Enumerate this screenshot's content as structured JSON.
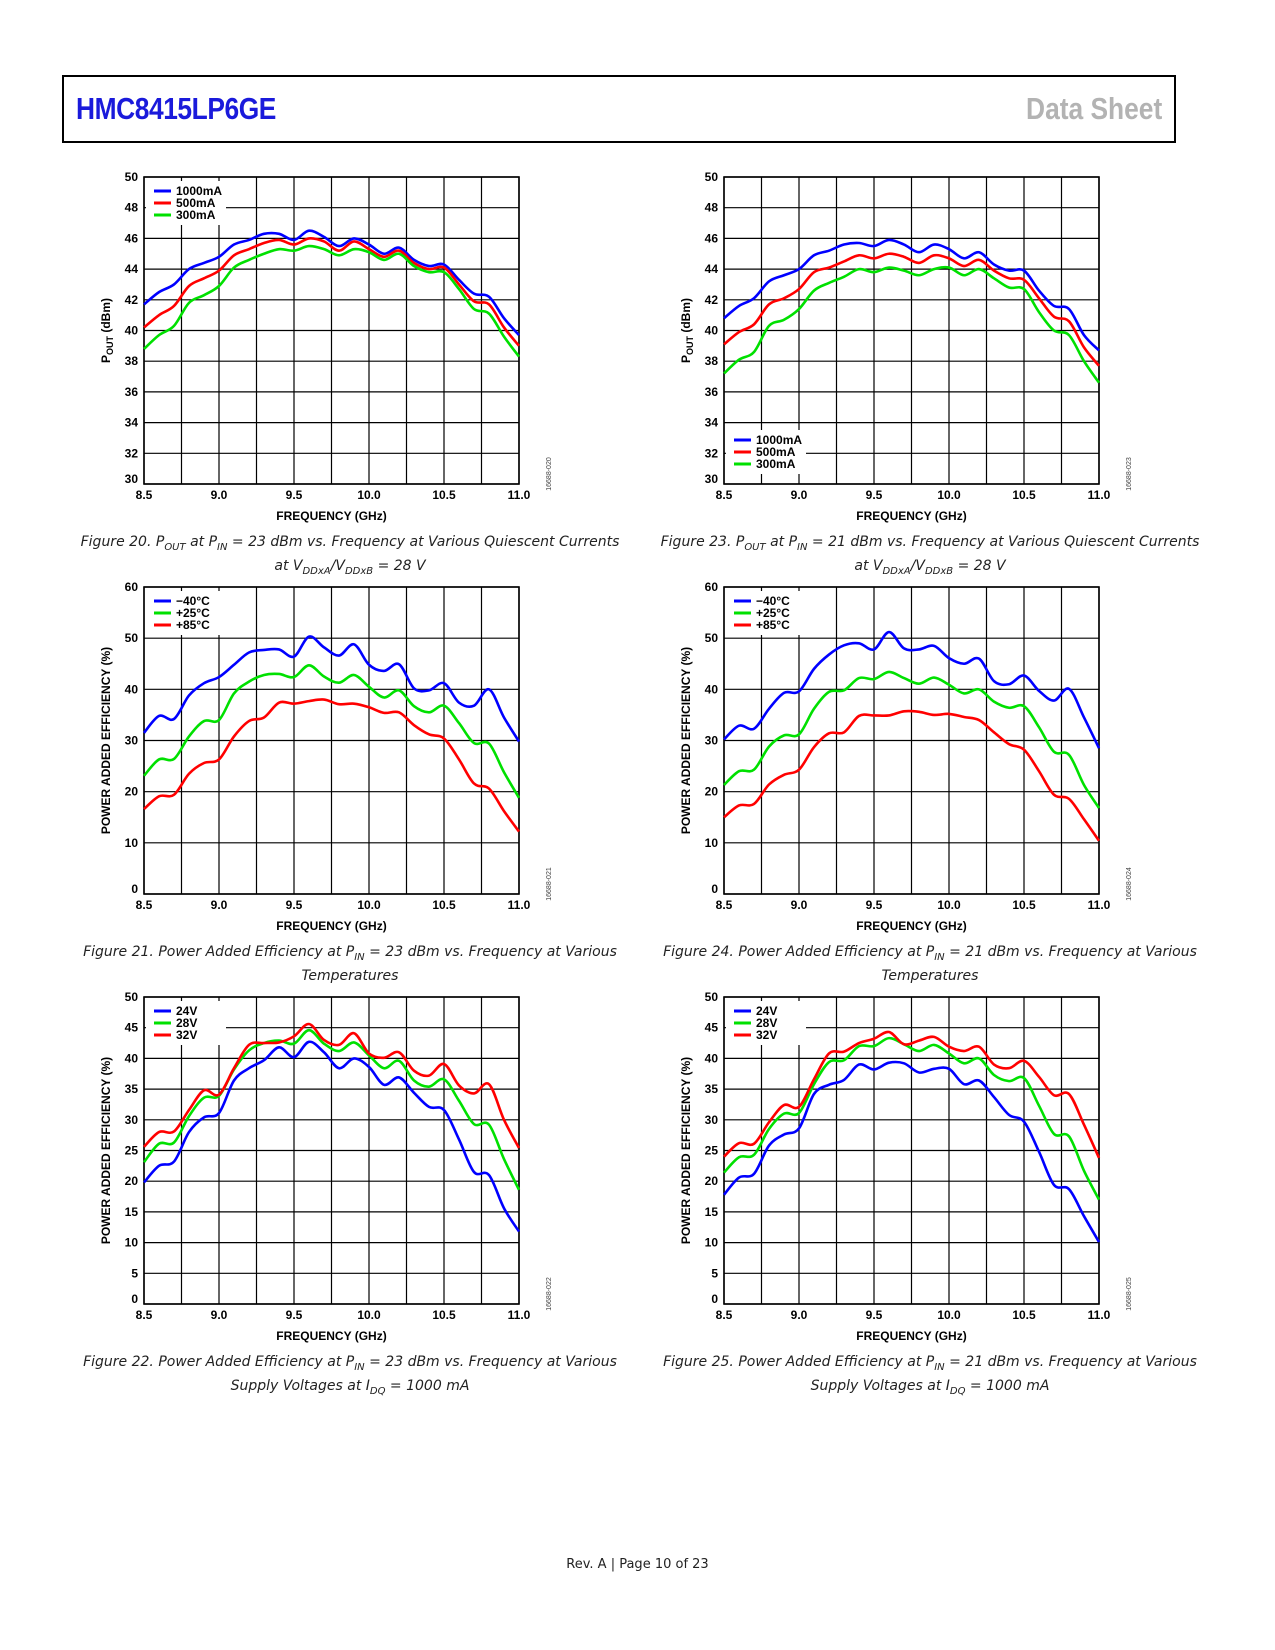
{
  "header": {
    "title": "HMC8415LP6GE",
    "doc_type": "Data Sheet"
  },
  "footer": {
    "text": "Rev. A | Page 10 of 23"
  },
  "figures": [
    {
      "id": "fig20",
      "caption_line1": "Figure 20. P_OUT at P_IN = 23 dBm vs. Frequency at Various Quiescent Currents",
      "caption_line2": "at V_DDxA/V_DDxB = 28 V",
      "side_id": "16688-020"
    },
    {
      "id": "fig23",
      "caption_line1": "Figure 23. P_OUT at P_IN = 21 dBm vs. Frequency at Various Quiescent Currents",
      "caption_line2": "at V_DDxA/V_DDxB = 28 V",
      "side_id": "16688-023"
    },
    {
      "id": "fig21",
      "caption_line1": "Figure 21. Power Added Efficiency at P_IN = 23 dBm vs. Frequency at Various",
      "caption_line2": "Temperatures",
      "side_id": "16688-021"
    },
    {
      "id": "fig24",
      "caption_line1": "Figure 24. Power Added Efficiency at P_IN = 21 dBm vs. Frequency at Various",
      "caption_line2": "Temperatures",
      "side_id": "16688-024"
    },
    {
      "id": "fig22",
      "caption_line1": "Figure 22. Power Added Efficiency at P_IN = 23 dBm vs. Frequency at Various",
      "caption_line2": "Supply Voltages at I_DQ = 1000 mA",
      "side_id": "16688-022"
    },
    {
      "id": "fig25",
      "caption_line1": "Figure 25. Power Added Efficiency at P_IN = 21 dBm vs. Frequency at Various",
      "caption_line2": "Supply Voltages at I_DQ = 1000 mA",
      "side_id": "16688-025"
    }
  ],
  "chart_data": [
    {
      "id": "fig20",
      "type": "line",
      "title": "P_OUT at P_IN = 23 dBm vs. Frequency at Various Quiescent Currents",
      "xlabel": "FREQUENCY (GHz)",
      "ylabel": "P_OUT (dBm)",
      "xlim": [
        8.5,
        11.0
      ],
      "ylim": [
        30,
        50
      ],
      "xticks": [
        "8.5",
        "9.0",
        "9.5",
        "10.0",
        "10.5",
        "11.0"
      ],
      "yticks": [
        "30",
        "32",
        "34",
        "36",
        "38",
        "40",
        "42",
        "44",
        "46",
        "48",
        "50"
      ],
      "grid": true,
      "legend_position": "top-left",
      "x": [
        8.5,
        8.6,
        8.7,
        8.8,
        8.9,
        9.0,
        9.1,
        9.2,
        9.3,
        9.4,
        9.5,
        9.6,
        9.7,
        9.8,
        9.9,
        10.0,
        10.1,
        10.2,
        10.3,
        10.4,
        10.5,
        10.6,
        10.7,
        10.8,
        10.9,
        11.0
      ],
      "series": [
        {
          "name": "1000mA",
          "color": "#0000ff",
          "values": [
            41.7,
            42.5,
            43.0,
            44.0,
            44.4,
            44.8,
            45.6,
            45.9,
            46.3,
            46.3,
            45.9,
            46.5,
            46.1,
            45.5,
            46.0,
            45.6,
            45.0,
            45.4,
            44.6,
            44.2,
            44.3,
            43.3,
            42.4,
            42.2,
            40.8,
            39.7
          ]
        },
        {
          "name": "500mA",
          "color": "#ff0000",
          "values": [
            40.2,
            41.0,
            41.6,
            42.9,
            43.4,
            43.9,
            44.9,
            45.3,
            45.7,
            45.9,
            45.6,
            46.0,
            45.8,
            45.2,
            45.8,
            45.3,
            44.8,
            45.2,
            44.4,
            44.0,
            44.1,
            43.0,
            41.9,
            41.7,
            40.2,
            39.0
          ]
        },
        {
          "name": "300mA",
          "color": "#00e000",
          "values": [
            38.8,
            39.7,
            40.3,
            41.8,
            42.3,
            42.9,
            44.1,
            44.6,
            45.0,
            45.3,
            45.2,
            45.5,
            45.3,
            44.9,
            45.3,
            45.1,
            44.6,
            45.0,
            44.2,
            43.8,
            43.8,
            42.7,
            41.4,
            41.1,
            39.6,
            38.3
          ]
        }
      ]
    },
    {
      "id": "fig23",
      "type": "line",
      "title": "P_OUT at P_IN = 21 dBm vs. Frequency at Various Quiescent Currents",
      "xlabel": "FREQUENCY (GHz)",
      "ylabel": "P_OUT (dBm)",
      "xlim": [
        8.5,
        11.0
      ],
      "ylim": [
        30,
        50
      ],
      "xticks": [
        "8.5",
        "9.0",
        "9.5",
        "10.0",
        "10.5",
        "11.0"
      ],
      "yticks": [
        "30",
        "32",
        "34",
        "36",
        "38",
        "40",
        "42",
        "44",
        "46",
        "48",
        "50"
      ],
      "grid": true,
      "legend_position": "bottom-left",
      "x": [
        8.5,
        8.6,
        8.7,
        8.8,
        8.9,
        9.0,
        9.1,
        9.2,
        9.3,
        9.4,
        9.5,
        9.6,
        9.7,
        9.8,
        9.9,
        10.0,
        10.1,
        10.2,
        10.3,
        10.4,
        10.5,
        10.6,
        10.7,
        10.8,
        10.9,
        11.0
      ],
      "series": [
        {
          "name": "1000mA",
          "color": "#0000ff",
          "values": [
            40.8,
            41.6,
            42.1,
            43.2,
            43.6,
            44.0,
            44.9,
            45.2,
            45.6,
            45.7,
            45.5,
            45.9,
            45.6,
            45.1,
            45.6,
            45.3,
            44.7,
            45.1,
            44.3,
            43.9,
            43.9,
            42.6,
            41.6,
            41.4,
            39.7,
            38.7
          ]
        },
        {
          "name": "500mA",
          "color": "#ff0000",
          "values": [
            39.1,
            39.9,
            40.4,
            41.7,
            42.1,
            42.7,
            43.8,
            44.1,
            44.5,
            44.9,
            44.7,
            45.0,
            44.8,
            44.4,
            44.9,
            44.7,
            44.2,
            44.6,
            43.9,
            43.4,
            43.3,
            42.1,
            40.9,
            40.6,
            38.9,
            37.7
          ]
        },
        {
          "name": "300mA",
          "color": "#00e000",
          "values": [
            37.2,
            38.1,
            38.6,
            40.3,
            40.7,
            41.4,
            42.6,
            43.1,
            43.5,
            44.0,
            43.8,
            44.1,
            43.9,
            43.6,
            44.0,
            44.1,
            43.6,
            44.0,
            43.4,
            42.8,
            42.7,
            41.2,
            40.0,
            39.7,
            38.0,
            36.6
          ]
        }
      ]
    },
    {
      "id": "fig21",
      "type": "line",
      "title": "Power Added Efficiency at P_IN = 23 dBm vs. Frequency at Various Temperatures",
      "xlabel": "FREQUENCY (GHz)",
      "ylabel": "POWER ADDED EFFICIENCY (%)",
      "xlim": [
        8.5,
        11.0
      ],
      "ylim": [
        0,
        60
      ],
      "xticks": [
        "8.5",
        "9.0",
        "9.5",
        "10.0",
        "10.5",
        "11.0"
      ],
      "yticks": [
        "0",
        "10",
        "20",
        "30",
        "40",
        "50",
        "60"
      ],
      "grid": true,
      "legend_position": "top-left",
      "x": [
        8.5,
        8.6,
        8.7,
        8.8,
        8.9,
        9.0,
        9.1,
        9.2,
        9.3,
        9.4,
        9.5,
        9.6,
        9.7,
        9.8,
        9.9,
        10.0,
        10.1,
        10.2,
        10.3,
        10.4,
        10.5,
        10.6,
        10.7,
        10.8,
        10.9,
        11.0
      ],
      "series": [
        {
          "name": "−40°C",
          "color": "#0000ff",
          "values": [
            31.5,
            34.8,
            34.2,
            38.8,
            41.2,
            42.4,
            44.8,
            47.2,
            47.7,
            47.8,
            46.4,
            50.3,
            48.2,
            46.6,
            48.8,
            44.8,
            43.6,
            44.9,
            40.2,
            39.8,
            41.2,
            37.4,
            36.8,
            40.0,
            34.5,
            29.8
          ]
        },
        {
          "name": "+25°C",
          "color": "#00e000",
          "values": [
            23.1,
            26.3,
            26.4,
            30.8,
            33.8,
            34.0,
            39.2,
            41.5,
            42.8,
            43.0,
            42.4,
            44.7,
            42.5,
            41.3,
            42.8,
            40.5,
            38.4,
            39.8,
            36.7,
            35.5,
            36.8,
            33.4,
            29.5,
            29.4,
            23.8,
            18.8
          ]
        },
        {
          "name": "+85°C",
          "color": "#ff0000",
          "values": [
            16.6,
            19.1,
            19.4,
            23.5,
            25.6,
            26.3,
            30.8,
            33.8,
            34.5,
            37.4,
            37.2,
            37.7,
            38.0,
            37.1,
            37.2,
            36.5,
            35.4,
            35.5,
            33.0,
            31.2,
            30.4,
            26.3,
            21.6,
            20.6,
            16.2,
            12.2
          ]
        }
      ]
    },
    {
      "id": "fig24",
      "type": "line",
      "title": "Power Added Efficiency at P_IN = 21 dBm vs. Frequency at Various Temperatures",
      "xlabel": "FREQUENCY (GHz)",
      "ylabel": "POWER ADDED EFFICIENCY (%)",
      "xlim": [
        8.5,
        11.0
      ],
      "ylim": [
        0,
        60
      ],
      "xticks": [
        "8.5",
        "9.0",
        "9.5",
        "10.0",
        "10.5",
        "11.0"
      ],
      "yticks": [
        "0",
        "10",
        "20",
        "30",
        "40",
        "50",
        "60"
      ],
      "grid": true,
      "legend_position": "top-left",
      "x": [
        8.5,
        8.6,
        8.7,
        8.8,
        8.9,
        9.0,
        9.1,
        9.2,
        9.3,
        9.4,
        9.5,
        9.6,
        9.7,
        9.8,
        9.9,
        10.0,
        10.1,
        10.2,
        10.3,
        10.4,
        10.5,
        10.6,
        10.7,
        10.8,
        10.9,
        11.0
      ],
      "series": [
        {
          "name": "−40°C",
          "color": "#0000ff",
          "values": [
            30.2,
            32.9,
            32.3,
            36.2,
            39.3,
            39.6,
            44.0,
            46.8,
            48.6,
            49.0,
            47.8,
            51.2,
            48.0,
            47.8,
            48.5,
            46.1,
            45.0,
            46.0,
            41.6,
            41.0,
            42.7,
            39.7,
            37.8,
            40.1,
            34.5,
            28.5
          ]
        },
        {
          "name": "+25°C",
          "color": "#00e000",
          "values": [
            21.3,
            24.0,
            24.3,
            28.8,
            31.0,
            31.2,
            36.2,
            39.5,
            39.8,
            42.2,
            42.0,
            43.4,
            42.2,
            41.1,
            42.3,
            40.9,
            39.2,
            40.0,
            37.6,
            36.4,
            36.7,
            32.6,
            27.8,
            27.2,
            21.3,
            16.8
          ]
        },
        {
          "name": "+85°C",
          "color": "#ff0000",
          "values": [
            15.0,
            17.3,
            17.6,
            21.4,
            23.3,
            24.3,
            28.7,
            31.4,
            31.6,
            34.8,
            34.9,
            34.9,
            35.7,
            35.6,
            35.0,
            35.2,
            34.6,
            34.0,
            31.6,
            29.3,
            28.2,
            24.0,
            19.4,
            18.6,
            14.6,
            10.4
          ]
        }
      ]
    },
    {
      "id": "fig22",
      "type": "line",
      "title": "Power Added Efficiency at P_IN = 23 dBm vs. Frequency at Various Supply Voltages at I_DQ = 1000 mA",
      "xlabel": "FREQUENCY (GHz)",
      "ylabel": "POWER ADDED EFFICIENCY (%)",
      "xlim": [
        8.5,
        11.0
      ],
      "ylim": [
        0,
        50
      ],
      "xticks": [
        "8.5",
        "9.0",
        "9.5",
        "10.0",
        "10.5",
        "11.0"
      ],
      "yticks": [
        "0",
        "5",
        "10",
        "15",
        "20",
        "25",
        "30",
        "35",
        "40",
        "45",
        "50"
      ],
      "grid": true,
      "legend_position": "top-left",
      "x": [
        8.5,
        8.6,
        8.7,
        8.8,
        8.9,
        9.0,
        9.1,
        9.2,
        9.3,
        9.4,
        9.5,
        9.6,
        9.7,
        9.8,
        9.9,
        10.0,
        10.1,
        10.2,
        10.3,
        10.4,
        10.5,
        10.6,
        10.7,
        10.8,
        10.9,
        11.0
      ],
      "series": [
        {
          "name": "24V",
          "color": "#0000ff",
          "values": [
            19.8,
            22.5,
            23.2,
            28.0,
            30.4,
            31.1,
            36.4,
            38.4,
            39.7,
            41.8,
            40.2,
            42.7,
            41.0,
            38.4,
            40.0,
            38.6,
            35.7,
            36.9,
            34.4,
            32.1,
            31.6,
            26.8,
            21.5,
            21.0,
            15.6,
            11.8
          ]
        },
        {
          "name": "28V",
          "color": "#00e000",
          "values": [
            23.1,
            26.1,
            26.3,
            30.6,
            33.6,
            33.9,
            38.2,
            41.3,
            42.5,
            42.9,
            42.4,
            44.6,
            42.4,
            41.2,
            42.6,
            40.5,
            38.4,
            39.6,
            36.4,
            35.4,
            36.6,
            33.1,
            29.3,
            29.2,
            23.6,
            18.6
          ]
        },
        {
          "name": "32V",
          "color": "#ff0000",
          "values": [
            25.6,
            28.0,
            28.1,
            31.6,
            34.8,
            34.1,
            38.4,
            42.2,
            42.5,
            42.6,
            43.6,
            45.6,
            43.0,
            42.2,
            44.1,
            40.8,
            40.1,
            41.0,
            38.0,
            37.2,
            39.1,
            35.6,
            34.3,
            35.8,
            30.0,
            25.4
          ]
        }
      ]
    },
    {
      "id": "fig25",
      "type": "line",
      "title": "Power Added Efficiency at P_IN = 21 dBm vs. Frequency at Various Supply Voltages at I_DQ = 1000 mA",
      "xlabel": "FREQUENCY (GHz)",
      "ylabel": "POWER ADDED EFFICIENCY (%)",
      "xlim": [
        8.5,
        11.0
      ],
      "ylim": [
        0,
        50
      ],
      "xticks": [
        "8.5",
        "9.0",
        "9.5",
        "10.0",
        "10.5",
        "11.0"
      ],
      "yticks": [
        "0",
        "5",
        "10",
        "15",
        "20",
        "25",
        "30",
        "35",
        "40",
        "45",
        "50"
      ],
      "grid": true,
      "legend_position": "top-left",
      "x": [
        8.5,
        8.6,
        8.7,
        8.8,
        8.9,
        9.0,
        9.1,
        9.2,
        9.3,
        9.4,
        9.5,
        9.6,
        9.7,
        9.8,
        9.9,
        10.0,
        10.1,
        10.2,
        10.3,
        10.4,
        10.5,
        10.6,
        10.7,
        10.8,
        10.9,
        11.0
      ],
      "series": [
        {
          "name": "24V",
          "color": "#0000ff",
          "values": [
            17.8,
            20.6,
            21.2,
            25.8,
            27.6,
            28.6,
            34.2,
            35.7,
            36.5,
            39.0,
            38.2,
            39.3,
            39.2,
            37.7,
            38.3,
            38.3,
            35.8,
            36.4,
            33.7,
            30.8,
            29.7,
            24.8,
            19.4,
            18.7,
            14.3,
            10.1
          ]
        },
        {
          "name": "28V",
          "color": "#00e000",
          "values": [
            21.4,
            23.9,
            24.3,
            28.5,
            31.0,
            31.1,
            35.8,
            39.4,
            39.7,
            42.0,
            42.0,
            43.3,
            42.3,
            41.2,
            42.2,
            40.8,
            39.2,
            40.0,
            37.3,
            36.3,
            36.8,
            32.3,
            27.7,
            27.3,
            21.7,
            17.0
          ]
        },
        {
          "name": "32V",
          "color": "#ff0000",
          "values": [
            24.0,
            26.2,
            26.1,
            29.6,
            32.4,
            32.1,
            36.6,
            40.8,
            41.1,
            42.5,
            43.2,
            44.3,
            42.3,
            42.9,
            43.5,
            41.9,
            41.2,
            41.9,
            39.0,
            38.4,
            39.6,
            37.0,
            34.0,
            34.2,
            29.2,
            23.8
          ]
        }
      ]
    }
  ]
}
